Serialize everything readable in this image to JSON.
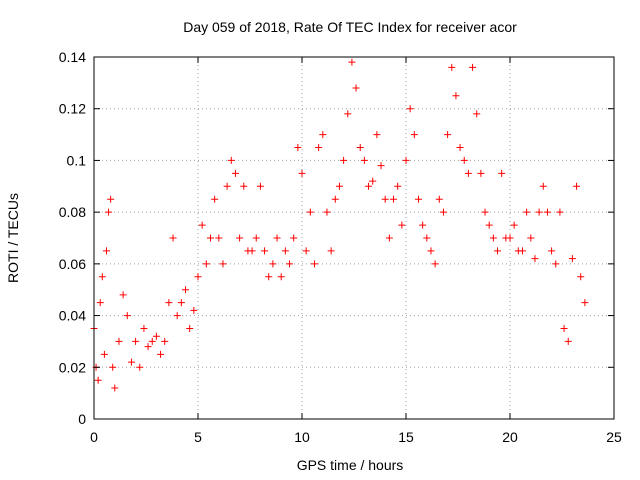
{
  "chart_data": {
    "type": "scatter",
    "title": "Day 059 of 2018, Rate Of TEC Index for receiver acor",
    "xlabel": "GPS time / hours",
    "ylabel": "ROTI / TECUs",
    "xlim": [
      0,
      25
    ],
    "ylim": [
      0,
      0.14
    ],
    "xticks": [
      0,
      5,
      10,
      15,
      20,
      25
    ],
    "xtick_labels": [
      "0",
      "5",
      "10",
      "15",
      "20",
      "25"
    ],
    "yticks": [
      0,
      0.02,
      0.04,
      0.06,
      0.08,
      0.1,
      0.12,
      0.14
    ],
    "ytick_labels": [
      "0",
      "0.02",
      "0.04",
      "0.06",
      "0.08",
      "0.1",
      "0.12",
      "0.14"
    ],
    "grid": true,
    "marker": "plus",
    "marker_color": "#ff0000",
    "series": [
      {
        "x": [
          0.0,
          0.1,
          0.2,
          0.3,
          0.4,
          0.5,
          0.6,
          0.7,
          0.8,
          0.9,
          1.0,
          1.2,
          1.4,
          1.6,
          1.8,
          2.0,
          2.2,
          2.4,
          2.6,
          2.8,
          3.0,
          3.2,
          3.4,
          3.6,
          3.8,
          4.0,
          4.2,
          4.4,
          4.6,
          4.8,
          5.0,
          5.2,
          5.4,
          5.6,
          5.8,
          6.0,
          6.2,
          6.4,
          6.6,
          6.8,
          7.0,
          7.2,
          7.4,
          7.6,
          7.8,
          8.0,
          8.2,
          8.4,
          8.6,
          8.8,
          9.0,
          9.2,
          9.4,
          9.6,
          9.8,
          10.0,
          10.2,
          10.4,
          10.6,
          10.8,
          11.0,
          11.2,
          11.4,
          11.6,
          11.8,
          12.0,
          12.2,
          12.4,
          12.6,
          12.8,
          13.0,
          13.2,
          13.4,
          13.6,
          13.8,
          14.0,
          14.2,
          14.4,
          14.6,
          14.8,
          15.0,
          15.2,
          15.4,
          15.6,
          15.8,
          16.0,
          16.2,
          16.4,
          16.6,
          16.8,
          17.0,
          17.2,
          17.4,
          17.6,
          17.8,
          18.0,
          18.2,
          18.4,
          18.6,
          18.8,
          19.0,
          19.2,
          19.4,
          19.6,
          19.8,
          20.0,
          20.2,
          20.4,
          20.6,
          20.8,
          21.0,
          21.2,
          21.4,
          21.6,
          21.8,
          22.0,
          22.2,
          22.4,
          22.6,
          22.8,
          23.0,
          23.2,
          23.4,
          23.6
        ],
        "y": [
          0.035,
          0.02,
          0.015,
          0.045,
          0.055,
          0.025,
          0.065,
          0.08,
          0.085,
          0.02,
          0.012,
          0.03,
          0.048,
          0.04,
          0.022,
          0.03,
          0.02,
          0.035,
          0.028,
          0.03,
          0.032,
          0.025,
          0.03,
          0.045,
          0.07,
          0.04,
          0.045,
          0.05,
          0.035,
          0.042,
          0.055,
          0.075,
          0.06,
          0.07,
          0.085,
          0.07,
          0.06,
          0.09,
          0.1,
          0.095,
          0.07,
          0.09,
          0.065,
          0.065,
          0.07,
          0.09,
          0.065,
          0.055,
          0.06,
          0.07,
          0.055,
          0.065,
          0.06,
          0.07,
          0.105,
          0.095,
          0.065,
          0.08,
          0.06,
          0.105,
          0.11,
          0.08,
          0.065,
          0.085,
          0.09,
          0.1,
          0.118,
          0.138,
          0.128,
          0.105,
          0.1,
          0.09,
          0.092,
          0.11,
          0.098,
          0.085,
          0.07,
          0.085,
          0.09,
          0.075,
          0.1,
          0.12,
          0.11,
          0.085,
          0.075,
          0.07,
          0.065,
          0.06,
          0.085,
          0.08,
          0.11,
          0.136,
          0.125,
          0.105,
          0.1,
          0.095,
          0.136,
          0.118,
          0.095,
          0.08,
          0.075,
          0.07,
          0.065,
          0.095,
          0.07,
          0.07,
          0.075,
          0.065,
          0.065,
          0.08,
          0.07,
          0.062,
          0.08,
          0.09,
          0.08,
          0.065,
          0.06,
          0.08,
          0.035,
          0.03,
          0.062,
          0.09,
          0.055,
          0.045
        ]
      }
    ]
  }
}
